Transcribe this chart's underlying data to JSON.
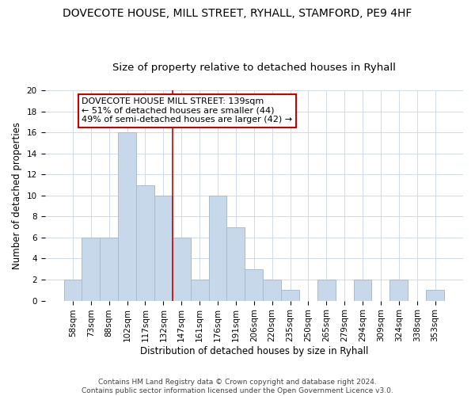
{
  "title": "DOVECOTE HOUSE, MILL STREET, RYHALL, STAMFORD, PE9 4HF",
  "subtitle": "Size of property relative to detached houses in Ryhall",
  "xlabel": "Distribution of detached houses by size in Ryhall",
  "ylabel": "Number of detached properties",
  "bar_labels": [
    "58sqm",
    "73sqm",
    "88sqm",
    "102sqm",
    "117sqm",
    "132sqm",
    "147sqm",
    "161sqm",
    "176sqm",
    "191sqm",
    "206sqm",
    "220sqm",
    "235sqm",
    "250sqm",
    "265sqm",
    "279sqm",
    "294sqm",
    "309sqm",
    "324sqm",
    "338sqm",
    "353sqm"
  ],
  "bar_values": [
    2,
    6,
    6,
    16,
    11,
    10,
    6,
    2,
    10,
    7,
    3,
    2,
    1,
    0,
    2,
    0,
    2,
    0,
    2,
    0,
    1
  ],
  "bar_color": "#c8d8eb",
  "bar_edge_color": "#a8bcd0",
  "vline_color": "#cc0000",
  "annotation_lines": [
    "DOVECOTE HOUSE MILL STREET: 139sqm",
    "← 51% of detached houses are smaller (44)",
    "49% of semi-detached houses are larger (42) →"
  ],
  "ylim": [
    0,
    20
  ],
  "yticks": [
    0,
    2,
    4,
    6,
    8,
    10,
    12,
    14,
    16,
    18,
    20
  ],
  "grid_color": "#d0daea",
  "footer_line1": "Contains HM Land Registry data © Crown copyright and database right 2024.",
  "footer_line2": "Contains public sector information licensed under the Open Government Licence v3.0.",
  "title_fontsize": 10,
  "subtitle_fontsize": 9.5,
  "tick_fontsize": 7.5,
  "ylabel_fontsize": 8.5,
  "xlabel_fontsize": 8.5,
  "annotation_fontsize": 8,
  "footer_fontsize": 6.5
}
